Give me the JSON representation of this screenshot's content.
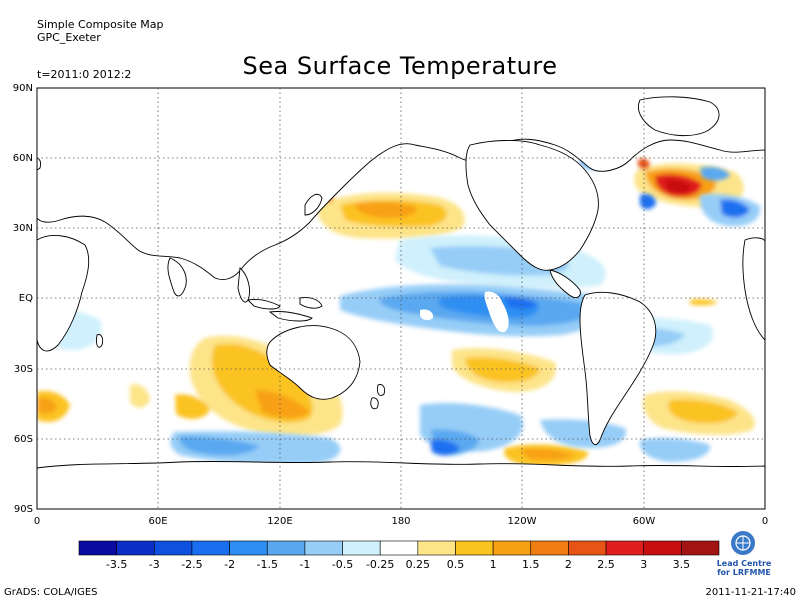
{
  "header": {
    "line1": "Simple Composite Map",
    "line2": "GPC_Exeter",
    "time": "t=2011:0 2012:2"
  },
  "title": "Sea Surface Temperature",
  "axes": {
    "lat_labels": [
      "90N",
      "60N",
      "30N",
      "EQ",
      "30S",
      "60S",
      "90S"
    ],
    "lon_labels": [
      "0",
      "60E",
      "120E",
      "180",
      "120W",
      "60W",
      "0"
    ]
  },
  "legend": {
    "ticks": [
      "-3.5",
      "-3",
      "-2.5",
      "-2",
      "-1.5",
      "-1",
      "-0.5",
      "-0.25",
      "0.25",
      "0.5",
      "1",
      "1.5",
      "2",
      "2.5",
      "3",
      "3.5"
    ],
    "colors": [
      "#0a0aa0",
      "#0c2fc8",
      "#0f50e0",
      "#1a6ff0",
      "#2f8ef2",
      "#5aa8f0",
      "#96cdf7",
      "#cff0fc",
      "#ffffff",
      "#fde489",
      "#fbc320",
      "#f8a013",
      "#f07e10",
      "#e85316",
      "#e01e1e",
      "#c80f10",
      "#a41414"
    ]
  },
  "logo": {
    "line1": "Lead Centre",
    "line2": "for LRFMME"
  },
  "footer": {
    "left": "GrADS: COLA/IGES",
    "right": "2011-11-21-17:40"
  }
}
